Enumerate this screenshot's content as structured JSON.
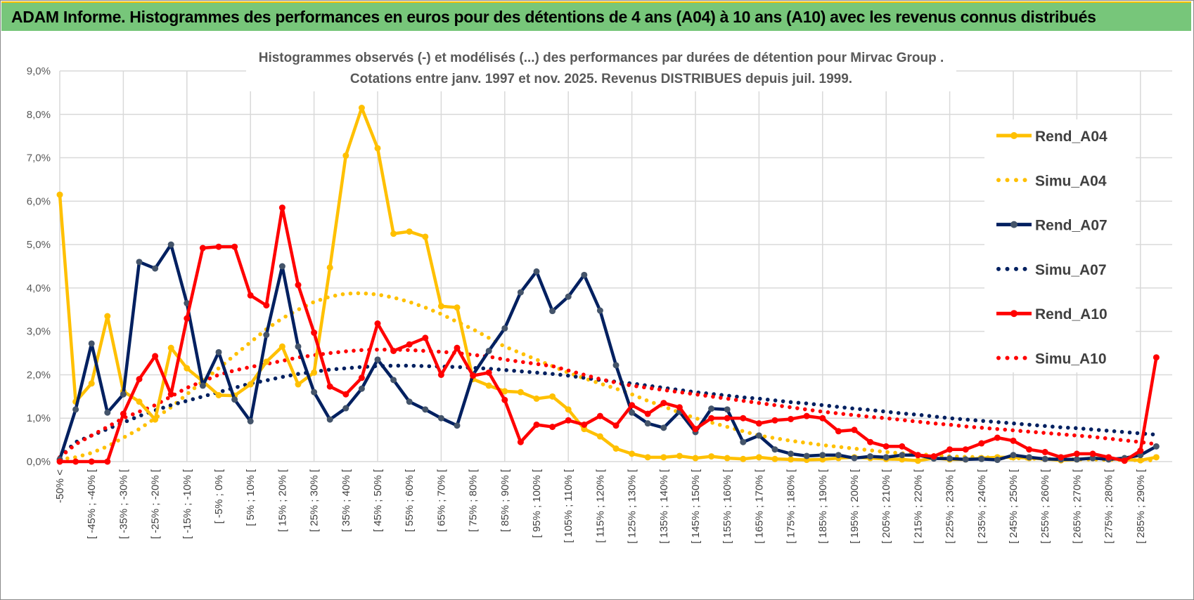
{
  "header": {
    "title": "ADAM Informe. Histogrammes des performances en euros pour des détentions de 4 ans (A04) à 10 ans (A10) avec les revenus connus distribués"
  },
  "chart_data": {
    "type": "line",
    "title": "Histogrammes observés (-) et modélisés (...) des performances par durées de détention pour Mirvac Group .",
    "subtitle": "Cotations entre janv. 1997 et nov. 2025. Revenus DISTRIBUES depuis juil. 1999.",
    "xlabel": "",
    "ylabel": "",
    "ylim": [
      0,
      9
    ],
    "yticks": [
      "0,0%",
      "1,0%",
      "2,0%",
      "3,0%",
      "4,0%",
      "5,0%",
      "6,0%",
      "7,0%",
      "8,0%",
      "9,0%"
    ],
    "grid": true,
    "legend_position": "right",
    "categories": [
      "-50% <",
      "",
      "[ -45% ; -40% [",
      "",
      "[ -35% ; -30% [",
      "",
      "[ -25% ; -20% [",
      "",
      "[ -15% ; -10% [",
      "",
      "[ -5% ; 0% [",
      "",
      "[ 5% ; 10% [",
      "",
      "[ 15% ; 20% [",
      "",
      "[ 25% ; 30% [",
      "",
      "[ 35% ; 40% [",
      "",
      "[ 45% ; 50% [",
      "",
      "[ 55% ; 60% [",
      "",
      "[ 65% ; 70% [",
      "",
      "[ 75% ; 80% [",
      "",
      "[ 85% ; 90% [",
      "",
      "[ 95% ; 100% [",
      "",
      "[ 105% ; 110% [",
      "",
      "[ 115% ; 120% [",
      "",
      "[ 125% ; 130% [",
      "",
      "[ 135% ; 140% [",
      "",
      "[ 145% ; 150% [",
      "",
      "[ 155% ; 160% [",
      "",
      "[ 165% ; 170% [",
      "",
      "[ 175% ; 180% [",
      "",
      "[ 185% ; 190% [",
      "",
      "[ 195% ; 200% [",
      "",
      "[ 205% ; 210% [",
      "",
      "[ 215% ; 220% [",
      "",
      "[ 225% ; 230% [",
      "",
      "[ 235% ; 240% [",
      "",
      "[ 245% ; 250% [",
      "",
      "[ 255% ; 260% [",
      "",
      "[ 265% ; 270% [",
      "",
      "[ 275% ; 280% [",
      "",
      "[ 285% ; 290% [",
      ""
    ],
    "series": [
      {
        "name": "Rend_A04",
        "style": "solid",
        "color": "#FFC000",
        "marker": "#FFC000",
        "values": [
          6.15,
          1.38,
          1.8,
          3.35,
          1.62,
          1.38,
          0.97,
          2.62,
          2.15,
          1.85,
          1.53,
          1.52,
          1.78,
          2.3,
          2.65,
          1.78,
          2.05,
          4.47,
          7.05,
          8.15,
          7.22,
          5.25,
          5.3,
          5.18,
          3.58,
          3.55,
          1.9,
          1.75,
          1.62,
          1.6,
          1.45,
          1.5,
          1.2,
          0.75,
          0.58,
          0.3,
          0.18,
          0.1,
          0.1,
          0.13,
          0.08,
          0.12,
          0.08,
          0.06,
          0.1,
          0.06,
          0.05,
          0.04,
          0.05,
          0.08,
          0.1,
          0.08,
          0.06,
          0.05,
          0.02,
          0.08,
          0.05,
          0.05,
          0.08,
          0.1,
          0.1,
          0.08,
          0.06,
          0.03,
          0.05,
          0.08,
          0.06,
          0.05,
          0.03,
          0.1
        ]
      },
      {
        "name": "Simu_A04",
        "style": "dotted",
        "color": "#FFC000",
        "values": [
          0.05,
          0.1,
          0.2,
          0.35,
          0.55,
          0.75,
          1.0,
          1.25,
          1.55,
          1.85,
          2.15,
          2.45,
          2.75,
          3.05,
          3.3,
          3.5,
          3.68,
          3.8,
          3.87,
          3.88,
          3.85,
          3.78,
          3.68,
          3.55,
          3.4,
          3.22,
          3.05,
          2.85,
          2.65,
          2.5,
          2.35,
          2.2,
          2.05,
          1.92,
          1.8,
          1.68,
          1.55,
          1.4,
          1.27,
          1.13,
          1.0,
          0.9,
          0.8,
          0.7,
          0.6,
          0.54,
          0.48,
          0.43,
          0.38,
          0.34,
          0.3,
          0.26,
          0.22,
          0.19,
          0.17,
          0.15,
          0.12,
          0.11,
          0.1,
          0.09,
          0.08,
          0.07,
          0.06,
          0.06,
          0.05,
          0.05,
          0.04,
          0.04,
          0.03,
          0.03
        ]
      },
      {
        "name": "Rend_A07",
        "style": "solid",
        "color": "#002060",
        "marker": "#44546A",
        "values": [
          0.05,
          1.2,
          2.72,
          1.13,
          1.55,
          4.6,
          4.45,
          5.0,
          3.65,
          1.75,
          2.52,
          1.43,
          0.93,
          2.92,
          4.5,
          2.65,
          1.6,
          0.97,
          1.23,
          1.68,
          2.35,
          1.88,
          1.38,
          1.2,
          1.0,
          0.83,
          2.0,
          2.55,
          3.07,
          3.9,
          4.38,
          3.47,
          3.8,
          4.3,
          3.48,
          2.22,
          1.13,
          0.88,
          0.78,
          1.15,
          0.68,
          1.22,
          1.2,
          0.45,
          0.6,
          0.28,
          0.18,
          0.13,
          0.15,
          0.15,
          0.08,
          0.12,
          0.1,
          0.15,
          0.15,
          0.07,
          0.07,
          0.05,
          0.06,
          0.04,
          0.15,
          0.1,
          0.06,
          0.05,
          0.05,
          0.08,
          0.05,
          0.08,
          0.15,
          0.35
        ]
      },
      {
        "name": "Simu_A07",
        "style": "dotted",
        "color": "#002060",
        "values": [
          0.1,
          0.45,
          0.6,
          0.75,
          0.9,
          1.05,
          1.18,
          1.3,
          1.4,
          1.5,
          1.6,
          1.7,
          1.8,
          1.87,
          1.95,
          2.02,
          2.07,
          2.12,
          2.15,
          2.18,
          2.2,
          2.21,
          2.21,
          2.2,
          2.19,
          2.18,
          2.16,
          2.14,
          2.11,
          2.08,
          2.05,
          2.02,
          1.98,
          1.93,
          1.88,
          1.84,
          1.8,
          1.75,
          1.7,
          1.65,
          1.6,
          1.56,
          1.52,
          1.48,
          1.45,
          1.41,
          1.37,
          1.34,
          1.3,
          1.26,
          1.22,
          1.19,
          1.15,
          1.11,
          1.08,
          1.04,
          1.0,
          0.97,
          0.94,
          0.91,
          0.88,
          0.85,
          0.82,
          0.79,
          0.77,
          0.74,
          0.71,
          0.68,
          0.65,
          0.62
        ]
      },
      {
        "name": "Rend_A10",
        "style": "solid",
        "color": "#FF0000",
        "marker": "#FF0000",
        "values": [
          0,
          0,
          0,
          0,
          1.1,
          1.9,
          2.43,
          1.55,
          3.3,
          4.92,
          4.95,
          4.95,
          3.83,
          3.6,
          5.85,
          4.07,
          2.97,
          1.73,
          1.55,
          1.93,
          3.18,
          2.55,
          2.7,
          2.85,
          2.0,
          2.62,
          1.98,
          2.05,
          1.42,
          0.45,
          0.85,
          0.8,
          0.95,
          0.85,
          1.05,
          0.83,
          1.3,
          1.1,
          1.35,
          1.25,
          0.75,
          1.0,
          1.0,
          1.0,
          0.88,
          0.95,
          0.98,
          1.05,
          1.0,
          0.7,
          0.73,
          0.45,
          0.35,
          0.35,
          0.15,
          0.12,
          0.28,
          0.28,
          0.42,
          0.55,
          0.48,
          0.28,
          0.22,
          0.1,
          0.18,
          0.18,
          0.1,
          0.02,
          0.25,
          2.4
        ]
      },
      {
        "name": "Simu_A10",
        "style": "dotted",
        "color": "#FF0000",
        "values": [
          0.1,
          0.4,
          0.6,
          0.8,
          1.0,
          1.15,
          1.3,
          1.5,
          1.7,
          1.85,
          2.0,
          2.1,
          2.18,
          2.25,
          2.32,
          2.4,
          2.45,
          2.5,
          2.54,
          2.57,
          2.58,
          2.58,
          2.57,
          2.55,
          2.53,
          2.5,
          2.46,
          2.42,
          2.35,
          2.3,
          2.25,
          2.2,
          2.1,
          2.0,
          1.9,
          1.82,
          1.75,
          1.7,
          1.65,
          1.6,
          1.55,
          1.5,
          1.45,
          1.4,
          1.35,
          1.3,
          1.25,
          1.2,
          1.15,
          1.11,
          1.07,
          1.03,
          1.0,
          0.96,
          0.92,
          0.88,
          0.85,
          0.81,
          0.78,
          0.75,
          0.72,
          0.69,
          0.66,
          0.63,
          0.6,
          0.57,
          0.53,
          0.49,
          0.45,
          0.4
        ]
      }
    ]
  }
}
